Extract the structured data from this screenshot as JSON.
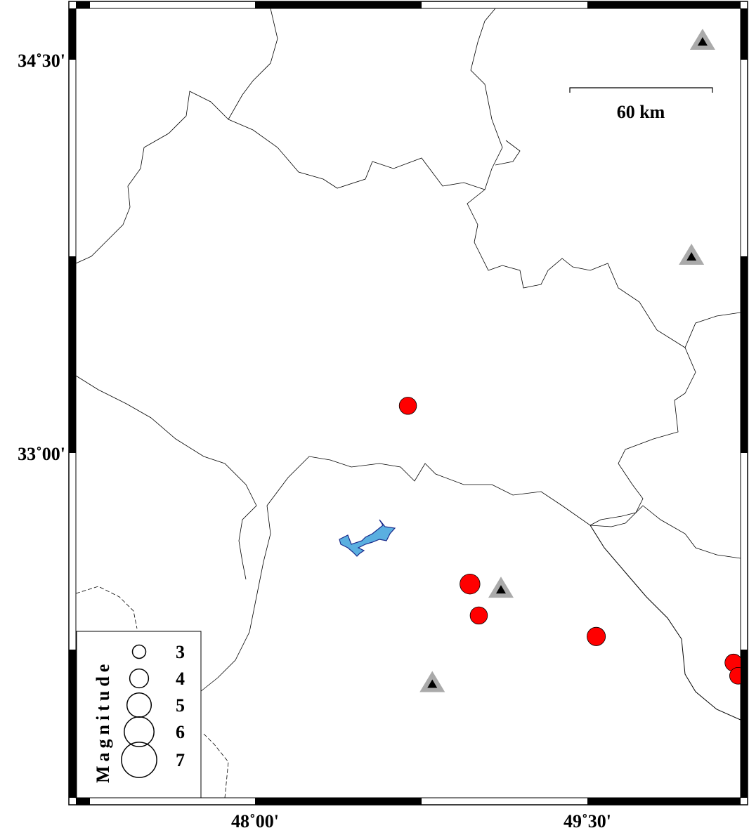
{
  "map": {
    "axes": {
      "x_ticks": [
        {
          "lon": 48.0,
          "label": "48˚00'"
        },
        {
          "lon": 49.5,
          "label": "49˚30'"
        }
      ],
      "y_ticks": [
        {
          "lat": 34.5,
          "label": "34˚30'"
        },
        {
          "lat": 33.0,
          "label": "33˚00'"
        }
      ]
    },
    "scale_bar": {
      "label": "60 km",
      "length_km": 60
    },
    "colors": {
      "event": "#ff0000",
      "station_outer": "#aaaaaa",
      "station_inner": "#000000",
      "water": "#5aafe0",
      "water_edge": "#1a2a8a"
    },
    "events": [
      {
        "lon": 48.69,
        "lat": 33.18,
        "mag": 3.6
      },
      {
        "lon": 48.97,
        "lat": 32.5,
        "mag": 4.1
      },
      {
        "lon": 49.01,
        "lat": 32.38,
        "mag": 3.6
      },
      {
        "lon": 49.54,
        "lat": 32.3,
        "mag": 3.8
      },
      {
        "lon": 50.16,
        "lat": 32.2,
        "mag": 3.6
      },
      {
        "lon": 50.18,
        "lat": 32.15,
        "mag": 3.5
      }
    ],
    "stations": [
      {
        "lon": 50.02,
        "lat": 34.57
      },
      {
        "lon": 49.97,
        "lat": 33.75
      },
      {
        "lon": 49.11,
        "lat": 32.48
      },
      {
        "lon": 48.8,
        "lat": 32.12
      }
    ],
    "legend": {
      "title": "Magnitude",
      "entries": [
        {
          "mag": 3,
          "label": "3"
        },
        {
          "mag": 4,
          "label": "4"
        },
        {
          "mag": 5,
          "label": "5"
        },
        {
          "mag": 6,
          "label": "6"
        },
        {
          "mag": 7,
          "label": "7"
        }
      ]
    }
  }
}
